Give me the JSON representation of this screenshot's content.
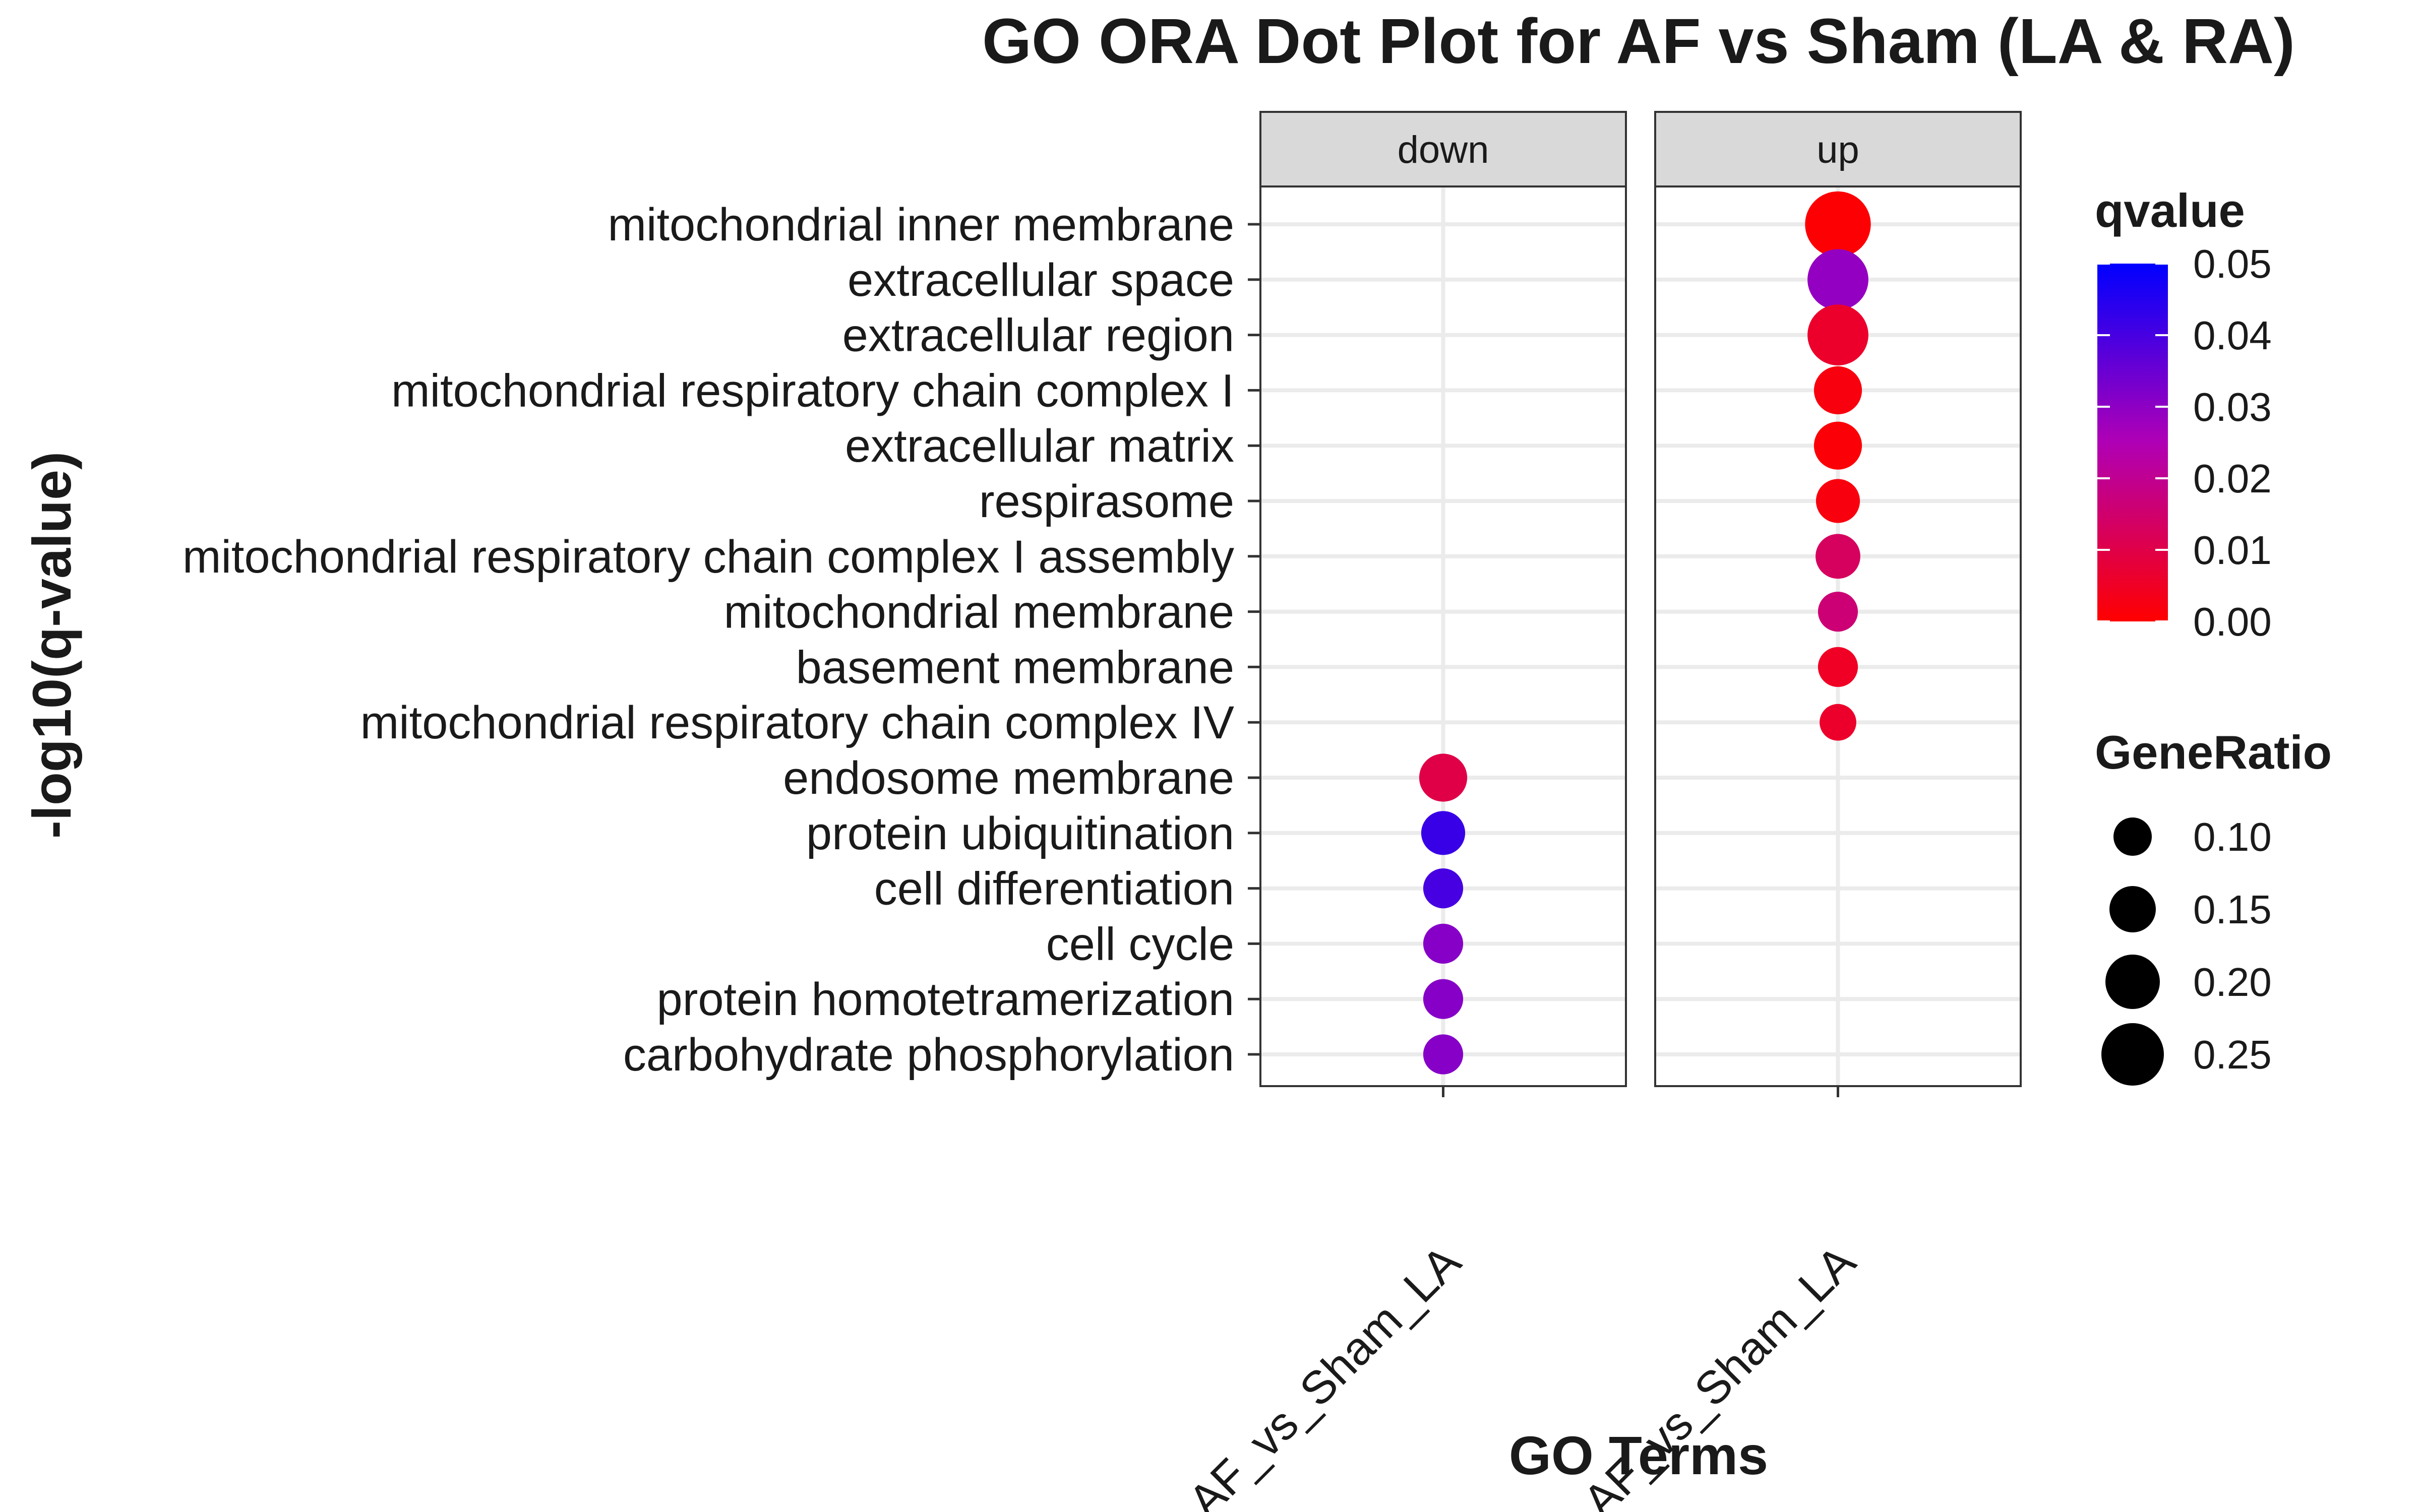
{
  "chart_data": {
    "type": "scatter",
    "title": "GO ORA Dot Plot for AF vs Sham (LA & RA)",
    "xlabel": "GO Terms",
    "ylabel": "-log10(q-value)",
    "x_tick_labels": [
      "AF_vs_Sham_LA",
      "AF_vs_Sham_LA"
    ],
    "facets": [
      "down",
      "up"
    ],
    "terms": [
      "mitochondrial inner membrane",
      "extracellular space",
      "extracellular region",
      "mitochondrial respiratory chain complex I",
      "extracellular matrix",
      "respirasome",
      "mitochondrial respiratory chain complex I assembly",
      "mitochondrial membrane",
      "basement membrane",
      "mitochondrial respiratory chain complex IV",
      "endosome membrane",
      "protein ubiquitination",
      "cell differentiation",
      "cell cycle",
      "protein homotetramerization",
      "carbohydrate phosphorylation"
    ],
    "points": [
      {
        "term": "mitochondrial inner membrane",
        "facet": "up",
        "qvalue": 0.0005,
        "gene_ratio": 0.27
      },
      {
        "term": "extracellular space",
        "facet": "up",
        "qvalue": 0.029,
        "gene_ratio": 0.24
      },
      {
        "term": "extracellular region",
        "facet": "up",
        "qvalue": 0.006,
        "gene_ratio": 0.24
      },
      {
        "term": "mitochondrial respiratory chain complex I",
        "facet": "up",
        "qvalue": 0.002,
        "gene_ratio": 0.16
      },
      {
        "term": "extracellular matrix",
        "facet": "up",
        "qvalue": 0.001,
        "gene_ratio": 0.16
      },
      {
        "term": "respirasome",
        "facet": "up",
        "qvalue": 0.002,
        "gene_ratio": 0.135
      },
      {
        "term": "mitochondrial respiratory chain complex I assembly",
        "facet": "up",
        "qvalue": 0.013,
        "gene_ratio": 0.14
      },
      {
        "term": "mitochondrial membrane",
        "facet": "up",
        "qvalue": 0.016,
        "gene_ratio": 0.11
      },
      {
        "term": "basement membrane",
        "facet": "up",
        "qvalue": 0.005,
        "gene_ratio": 0.11
      },
      {
        "term": "mitochondrial respiratory chain complex IV",
        "facet": "up",
        "qvalue": 0.006,
        "gene_ratio": 0.09
      },
      {
        "term": "endosome membrane",
        "facet": "down",
        "qvalue": 0.01,
        "gene_ratio": 0.16
      },
      {
        "term": "protein ubiquitination",
        "facet": "down",
        "qvalue": 0.042,
        "gene_ratio": 0.135
      },
      {
        "term": "cell differentiation",
        "facet": "down",
        "qvalue": 0.04,
        "gene_ratio": 0.11
      },
      {
        "term": "cell cycle",
        "facet": "down",
        "qvalue": 0.031,
        "gene_ratio": 0.11
      },
      {
        "term": "protein homotetramerization",
        "facet": "down",
        "qvalue": 0.031,
        "gene_ratio": 0.11
      },
      {
        "term": "carbohydrate phosphorylation",
        "facet": "down",
        "qvalue": 0.031,
        "gene_ratio": 0.11
      }
    ],
    "color_legend": {
      "title": "qvalue",
      "ticks": [
        "0.00",
        "0.01",
        "0.02",
        "0.03",
        "0.04",
        "0.05"
      ],
      "range": [
        0,
        0.05
      ],
      "low_color": "#ff0000",
      "high_color": "#0000ff"
    },
    "size_legend": {
      "title": "GeneRatio",
      "ticks": [
        "0.10",
        "0.15",
        "0.20",
        "0.25"
      ]
    },
    "grid": true
  }
}
